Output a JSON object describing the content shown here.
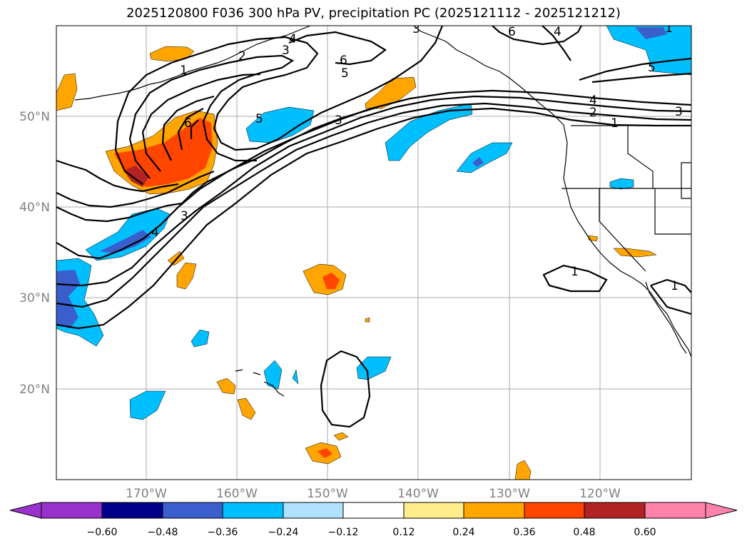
{
  "title": "2025120800 F036 300 hPa PV, precipitation PC (2025121112 - 2025121212)",
  "map": {
    "lon_labels": [
      "170°W",
      "160°W",
      "150°W",
      "140°W",
      "130°W",
      "120°W"
    ],
    "lat_labels": [
      "50°N",
      "40°N",
      "30°N",
      "20°N"
    ],
    "contour_labels": [
      "1",
      "2",
      "3",
      "4",
      "5",
      "6",
      "6",
      "5",
      "3",
      "6",
      "4",
      "3",
      "4",
      "2",
      "3",
      "1",
      "3",
      "4",
      "5",
      "1",
      "1",
      "1"
    ],
    "colors": {
      "neg_extreme": "#9932cc",
      "neg_060": "#00008b",
      "neg_048": "#3a5fcd",
      "neg_036": "#00bfff",
      "neg_024": "#b0e2ff",
      "neutral": "#ffffff",
      "pos_012": "#ffec8b",
      "pos_024": "#ffa500",
      "pos_036": "#ff4500",
      "pos_048": "#b22222",
      "pos_extreme": "#ff82ab"
    }
  },
  "colorbar": {
    "ticks": [
      "−0.60",
      "−0.48",
      "−0.36",
      "−0.24",
      "−0.12",
      "0.12",
      "0.24",
      "0.36",
      "0.48",
      "0.60"
    ]
  }
}
